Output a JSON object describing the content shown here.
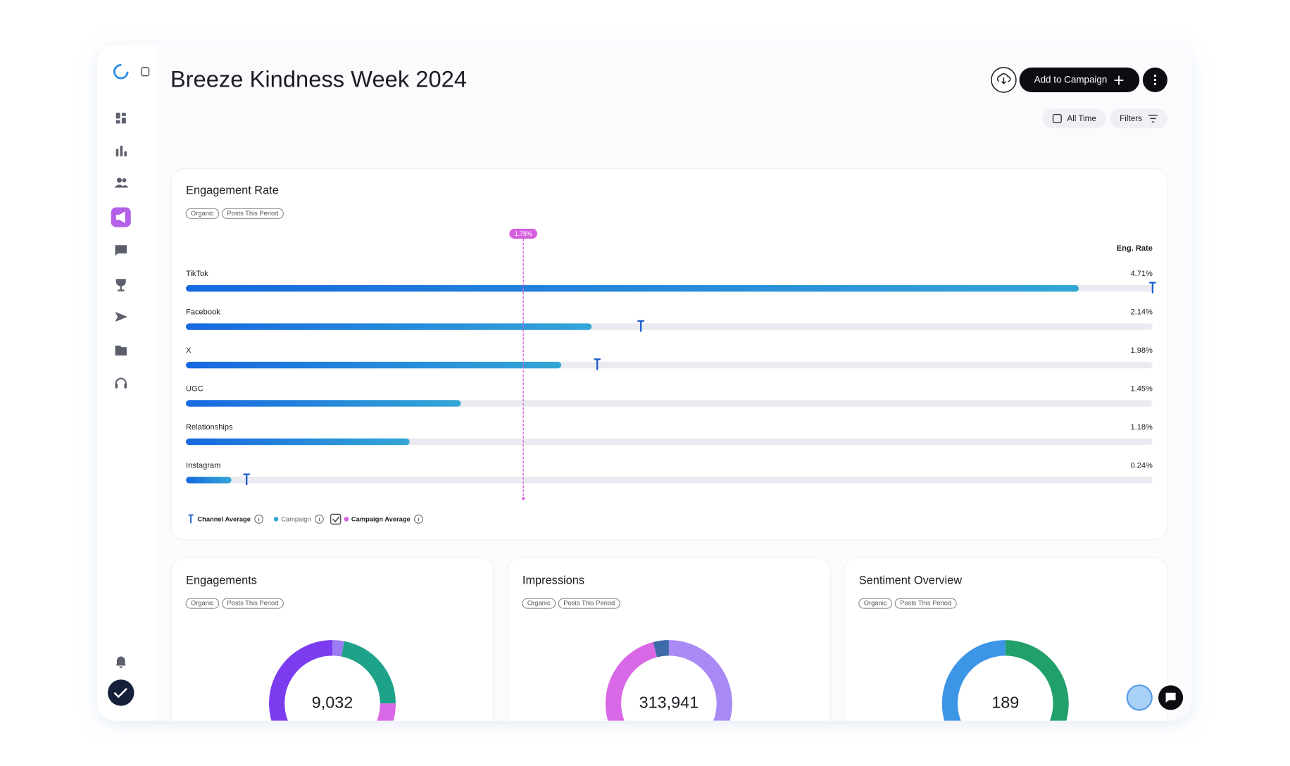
{
  "header": {
    "title": "Breeze Kindness Week 2024",
    "add_button": "Add to Campaign",
    "period_button": "All Time",
    "filters_button": "Filters"
  },
  "chart_data": {
    "type": "bar",
    "orientation": "horizontal",
    "title": "Engagement Rate",
    "tags": [
      "Organic",
      "Posts This Period"
    ],
    "value_header": "Eng. Rate",
    "categories": [
      "TikTok",
      "Facebook",
      "X",
      "UGC",
      "Relationships",
      "Instagram"
    ],
    "values": [
      4.71,
      2.14,
      1.98,
      1.45,
      1.18,
      0.24
    ],
    "value_labels": [
      "4.71%",
      "2.14%",
      "1.98%",
      "1.45%",
      "1.18%",
      "0.24%"
    ],
    "channel_average": [
      5.1,
      2.4,
      2.17,
      null,
      null,
      0.32
    ],
    "campaign_average": {
      "value": 1.78,
      "label": "1.78%"
    },
    "xlim": [
      0,
      5.1
    ],
    "bar_colors": [
      "#1769e0",
      "#34a6d6"
    ],
    "channel_average_color": "#1d5fc9",
    "campaign_average_color": "#d65fe0",
    "legend": {
      "channel_average": "Channel Average",
      "campaign": "Campaign",
      "campaign_average": "Campaign Average"
    }
  },
  "cards": [
    {
      "title": "Engagements",
      "tags": [
        "Organic",
        "Posts This Period"
      ],
      "total": "9,032",
      "segments": [
        {
          "color": "#9b7cf2",
          "value": 3
        },
        {
          "color": "#1ea38a",
          "value": 22
        },
        {
          "color": "#d968e6",
          "value": 10
        },
        {
          "color": "#7b3cf0",
          "value": 65
        }
      ]
    },
    {
      "title": "Impressions",
      "tags": [
        "Organic",
        "Posts This Period"
      ],
      "total": "313,941",
      "segments": [
        {
          "color": "#a98af5",
          "value": 38
        },
        {
          "color": "#1ea38a",
          "value": 4
        },
        {
          "color": "#d968e6",
          "value": 54
        },
        {
          "color": "#3d6aa8",
          "value": 4
        }
      ]
    },
    {
      "title": "Sentiment Overview",
      "tags": [
        "Organic",
        "Posts This Period"
      ],
      "total": "189",
      "segments": [
        {
          "color": "#22a06b",
          "value": 50
        },
        {
          "color": "#3d95e6",
          "value": 50
        }
      ]
    }
  ]
}
